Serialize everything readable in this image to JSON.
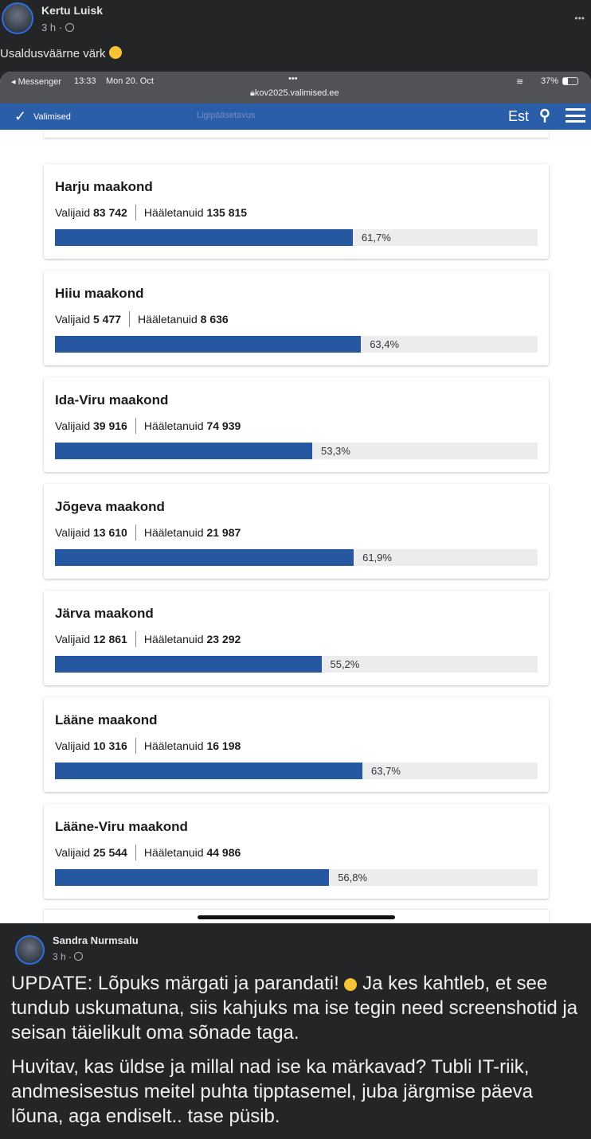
{
  "post": {
    "author": "Kertu Luisk",
    "time": "3 h ·",
    "text": "Usaldusväärne värk",
    "more": "•••"
  },
  "device": {
    "back": "◂ Messenger",
    "time": "13:33",
    "date": "Mon 20. Oct",
    "dots": "•••",
    "battery": "37%",
    "url": "kov2025.valimised.ee"
  },
  "site": {
    "logo": "Valimised",
    "accessibility": "Ligipääsetavus",
    "lang": "Est"
  },
  "regions": [
    {
      "name": "Harju maakond",
      "voters_label": "Valijaid",
      "voters": "83 742",
      "voted_label": "Hääletanuid",
      "voted": "135 815",
      "percent": 61.7,
      "percent_label": "61,7%"
    },
    {
      "name": "Hiiu maakond",
      "voters_label": "Valijaid",
      "voters": "5 477",
      "voted_label": "Hääletanuid",
      "voted": "8 636",
      "percent": 63.4,
      "percent_label": "63,4%"
    },
    {
      "name": "Ida-Viru maakond",
      "voters_label": "Valijaid",
      "voters": "39 916",
      "voted_label": "Hääletanuid",
      "voted": "74 939",
      "percent": 53.3,
      "percent_label": "53,3%"
    },
    {
      "name": "Jõgeva maakond",
      "voters_label": "Valijaid",
      "voters": "13 610",
      "voted_label": "Hääletanuid",
      "voted": "21 987",
      "percent": 61.9,
      "percent_label": "61,9%"
    },
    {
      "name": "Järva maakond",
      "voters_label": "Valijaid",
      "voters": "12 861",
      "voted_label": "Hääletanuid",
      "voted": "23 292",
      "percent": 55.2,
      "percent_label": "55,2%"
    },
    {
      "name": "Lääne maakond",
      "voters_label": "Valijaid",
      "voters": "10 316",
      "voted_label": "Hääletanuid",
      "voted": "16 198",
      "percent": 63.7,
      "percent_label": "63,7%"
    },
    {
      "name": "Lääne-Viru maakond",
      "voters_label": "Valijaid",
      "voters": "25 544",
      "voted_label": "Hääletanuid",
      "voted": "44 986",
      "percent": 56.8,
      "percent_label": "56,8%"
    }
  ],
  "shared": {
    "author": "Sandra Nurmsalu",
    "time": "3 h ·",
    "p1a": "UPDATE: Lõpuks märgati ja parandati!",
    "p1b": "Ja kes kahtleb, et see tundub uskumatuna, siis kahjuks ma ise tegin need screenshotid ja seisan täielikult oma sõnade taga.",
    "p2": "Huvitav, kas üldse ja millal nad ise ka märkavad? Tubli IT-riik, andmesisestus meitel puhta tipptasemel, juba järgmise päeva lõuna, aga endiselt.. tase püsib."
  }
}
